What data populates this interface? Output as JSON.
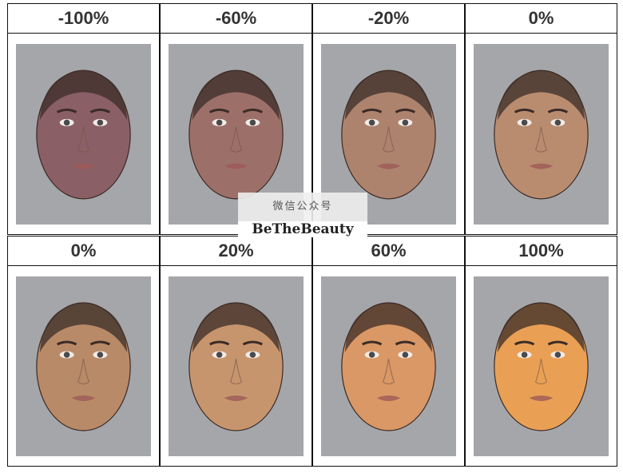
{
  "chart_data": {
    "type": "image-grid",
    "rows": [
      [
        {
          "label": "-100%",
          "skin": "#8a5f66"
        },
        {
          "label": "-60%",
          "skin": "#9c7069"
        },
        {
          "label": "-20%",
          "skin": "#ad836e"
        },
        {
          "label": "0%",
          "skin": "#b98c70"
        }
      ],
      [
        {
          "label": "0%",
          "skin": "#b98a68"
        },
        {
          "label": "20%",
          "skin": "#c7956d"
        },
        {
          "label": "60%",
          "skin": "#d99866"
        },
        {
          "label": "100%",
          "skin": "#e9a055"
        }
      ]
    ]
  },
  "watermark": {
    "line1": "微信公众号",
    "line2": "BeTheBeauty"
  }
}
